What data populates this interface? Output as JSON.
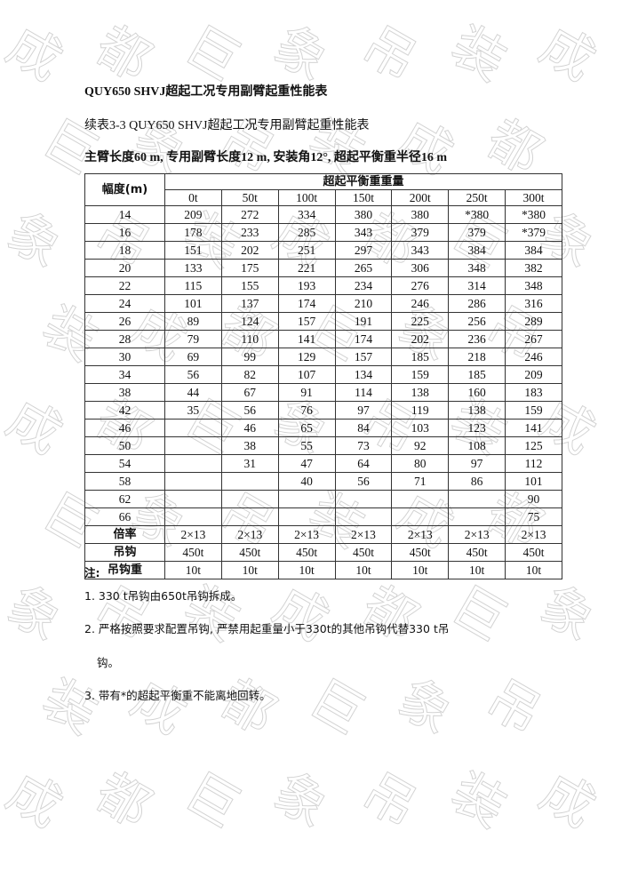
{
  "watermark": "成都巨象吊装",
  "document": {
    "title": "QUY650  SHVJ超起工况专用副臂起重性能表",
    "subtitle": "续表3-3 QUY650  SHVJ超起工况专用副臂起重性能表",
    "condition": "主臂长度60 m, 专用副臂长度12 m, 安装角12°, 超起平衡重半径16 m"
  },
  "table": {
    "radius_header": "幅度(m)",
    "group_header": "超起平衡重重量",
    "columns": [
      "0t",
      "50t",
      "100t",
      "150t",
      "200t",
      "250t",
      "300t"
    ],
    "rows": [
      {
        "radius": "14",
        "values": [
          "209",
          "272",
          "334",
          "380",
          "380",
          "*380",
          "*380"
        ]
      },
      {
        "radius": "16",
        "values": [
          "178",
          "233",
          "285",
          "343",
          "379",
          "379",
          "*379"
        ]
      },
      {
        "radius": "18",
        "values": [
          "151",
          "202",
          "251",
          "297",
          "343",
          "384",
          "384"
        ]
      },
      {
        "radius": "20",
        "values": [
          "133",
          "175",
          "221",
          "265",
          "306",
          "348",
          "382"
        ]
      },
      {
        "radius": "22",
        "values": [
          "115",
          "155",
          "193",
          "234",
          "276",
          "314",
          "348"
        ]
      },
      {
        "radius": "24",
        "values": [
          "101",
          "137",
          "174",
          "210",
          "246",
          "286",
          "316"
        ]
      },
      {
        "radius": "26",
        "values": [
          "89",
          "124",
          "157",
          "191",
          "225",
          "256",
          "289"
        ]
      },
      {
        "radius": "28",
        "values": [
          "79",
          "110",
          "141",
          "174",
          "202",
          "236",
          "267"
        ]
      },
      {
        "radius": "30",
        "values": [
          "69",
          "99",
          "129",
          "157",
          "185",
          "218",
          "246"
        ]
      },
      {
        "radius": "34",
        "values": [
          "56",
          "82",
          "107",
          "134",
          "159",
          "185",
          "209"
        ]
      },
      {
        "radius": "38",
        "values": [
          "44",
          "67",
          "91",
          "114",
          "138",
          "160",
          "183"
        ]
      },
      {
        "radius": "42",
        "values": [
          "35",
          "56",
          "76",
          "97",
          "119",
          "138",
          "159"
        ]
      },
      {
        "radius": "46",
        "values": [
          "",
          "46",
          "65",
          "84",
          "103",
          "123",
          "141"
        ]
      },
      {
        "radius": "50",
        "values": [
          "",
          "38",
          "55",
          "73",
          "92",
          "108",
          "125"
        ]
      },
      {
        "radius": "54",
        "values": [
          "",
          "31",
          "47",
          "64",
          "80",
          "97",
          "112"
        ]
      },
      {
        "radius": "58",
        "values": [
          "",
          "",
          "40",
          "56",
          "71",
          "86",
          "101"
        ]
      },
      {
        "radius": "62",
        "values": [
          "",
          "",
          "",
          "",
          "",
          "",
          "90"
        ]
      },
      {
        "radius": "66",
        "values": [
          "",
          "",
          "",
          "",
          "",
          "",
          "75"
        ]
      }
    ],
    "footer_rows": [
      {
        "label": "倍率",
        "values": [
          "2×13",
          "2×13",
          "2×13",
          "2×13",
          "2×13",
          "2×13",
          "2×13"
        ]
      },
      {
        "label": "吊钩",
        "values": [
          "450t",
          "450t",
          "450t",
          "450t",
          "450t",
          "450t",
          "450t"
        ]
      },
      {
        "label": "吊钩重",
        "values": [
          "10t",
          "10t",
          "10t",
          "10t",
          "10t",
          "10t",
          "10t"
        ]
      }
    ]
  },
  "notes": {
    "heading": "注:",
    "items": [
      "1. 330  t吊钩由650t吊钩拆成。",
      "2. 严格按照要求配置吊钩, 严禁用起重量小于330t的其他吊钩代替330  t吊",
      "   钩。",
      "3. 带有*的超起平衡重不能离地回转。"
    ]
  }
}
